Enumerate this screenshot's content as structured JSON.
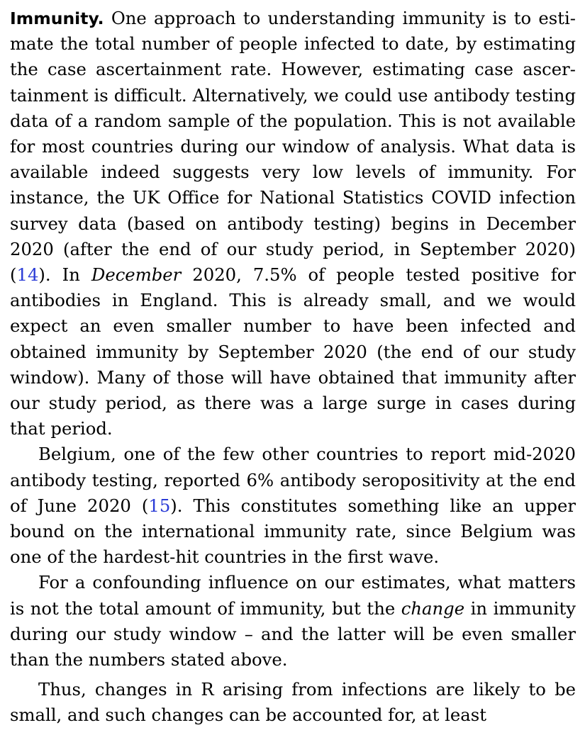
{
  "paragraphs": [
    {
      "heading": "Immunity.",
      "segments": [
        {
          "type": "text",
          "text": " One approach to understanding immunity is to esti­mate the total number of people infected to date, by estimating the case ascertainment rate. However, estimating case ascer­tainment is difficult.  Alternatively, we could use antibody testing data of a random sample of the population.  This is not available for most countries during our window of anal­ysis.  What data is available indeed suggests very low levels of immunity. For instance, the UK Office for National Statis­tics COVID infection survey data (based on antibody testing) begins in December 2020 (after the end of our study period, in September 2020) ("
        },
        {
          "type": "cite",
          "text": "14"
        },
        {
          "type": "text",
          "text": ").  In "
        },
        {
          "type": "italic",
          "text": "December"
        },
        {
          "type": "text",
          "text": " 2020, 7.5% of people tested positive for antibodies in England.  This is already small, and we would expect an even smaller number to have been infected and obtained immunity by September 2020 (the end of our study window).  Many of those will have obtained that immunity after our study period, as there was a large surge in cases during that period."
        }
      ]
    },
    {
      "segments": [
        {
          "type": "text",
          "text": "Belgium, one of the few other countries to report mid-2020 antibody testing, reported 6% antibody seropositivity at the end of June 2020 ("
        },
        {
          "type": "cite",
          "text": "15"
        },
        {
          "type": "text",
          "text": ").  This constitutes something like an upper bound on the international immunity rate, since Belgium was one of the hardest-hit countries in the first wave."
        }
      ]
    },
    {
      "segments": [
        {
          "type": "text",
          "text": "For a confounding influence on our estimates, what mat­ters is not the total amount of immunity, but the "
        },
        {
          "type": "italic",
          "text": "change"
        },
        {
          "type": "text",
          "text": " in immunity during our study window – and the latter will be even smaller than the numbers stated above."
        }
      ]
    },
    {
      "segments": [
        {
          "type": "text",
          "text": "Thus, changes in R arising from infections are likely to be small, and such changes can be accounted for, at least"
        }
      ]
    }
  ]
}
